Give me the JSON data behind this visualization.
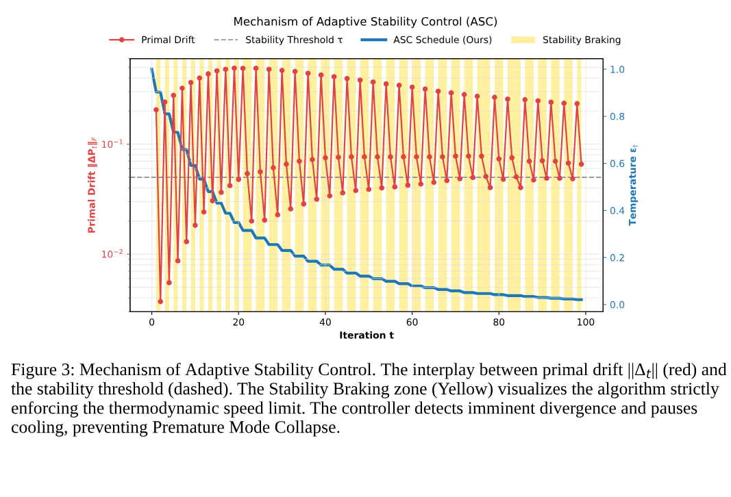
{
  "chart_data": {
    "type": "line",
    "title": "Mechanism of Adaptive Stability Control (ASC)",
    "xlabel": "Iteration t",
    "ylabel": "Primal Drift ‖ΔP$_{t}$‖$_{F}$",
    "y2label": "Temperature ε$_{t}$",
    "log": "y",
    "xlim": [
      -5,
      104
    ],
    "xticks": [
      0,
      20,
      40,
      60,
      80,
      100
    ],
    "ylim": [
      0.003,
      0.6
    ],
    "yticks": [
      {
        "value": 0.01,
        "label": "10$^{−2}$"
      },
      {
        "value": 0.1,
        "label": "10$^{−1}$"
      }
    ],
    "y2lim": [
      -0.03,
      1.045
    ],
    "y2ticks": [
      {
        "value": 0,
        "label": "0.0"
      },
      {
        "value": 0.2,
        "label": "0.2"
      },
      {
        "value": 0.4,
        "label": "0.4"
      },
      {
        "value": 0.6,
        "label": "0.6"
      },
      {
        "value": 0.8,
        "label": "0.8"
      },
      {
        "value": 1,
        "label": "1.0"
      }
    ],
    "grid": true,
    "legend": "top",
    "series": [
      {
        "name": "Primal Drift",
        "color": "#e04343",
        "marker": "circle",
        "line_style": "solid",
        "x": [
          1,
          2,
          3,
          4,
          5,
          6,
          7,
          8,
          9,
          10,
          11,
          12,
          13,
          14,
          15,
          16,
          17,
          18,
          19,
          20,
          21,
          22,
          23,
          24,
          25,
          26,
          27,
          28,
          29,
          30,
          31,
          32,
          33,
          34,
          35,
          36,
          37,
          38,
          39,
          40,
          41,
          42,
          43,
          44,
          45,
          46,
          47,
          48,
          49,
          50,
          51,
          52,
          53,
          54,
          55,
          56,
          57,
          58,
          59,
          60,
          61,
          62,
          63,
          64,
          65,
          66,
          67,
          68,
          69,
          70,
          71,
          72,
          73,
          74,
          75,
          76,
          77,
          78,
          79,
          80,
          81,
          82,
          83,
          84,
          85,
          86,
          87,
          88,
          89,
          90,
          91,
          92,
          93,
          94,
          95,
          96,
          97,
          98,
          99
        ],
        "values": [
          0.206,
          0.0037,
          0.242,
          0.0055,
          0.278,
          0.0087,
          0.323,
          0.013,
          0.364,
          0.0183,
          0.4,
          0.0242,
          0.436,
          0.0306,
          0.465,
          0.0365,
          0.48,
          0.042,
          0.492,
          0.0478,
          0.49,
          0.054,
          0.02,
          0.49,
          0.056,
          0.0204,
          0.48,
          0.061,
          0.0228,
          0.469,
          0.0658,
          0.0258,
          0.459,
          0.07,
          0.0286,
          0.442,
          0.0724,
          0.0316,
          0.426,
          0.0752,
          0.0339,
          0.411,
          0.076,
          0.0361,
          0.395,
          0.0767,
          0.0379,
          0.383,
          0.0767,
          0.0388,
          0.368,
          0.0767,
          0.04,
          0.354,
          0.0767,
          0.0409,
          0.343,
          0.0767,
          0.0424,
          0.33,
          0.0767,
          0.0434,
          0.318,
          0.0767,
          0.045,
          0.303,
          0.0767,
          0.0467,
          0.293,
          0.0778,
          0.0485,
          0.283,
          0.0778,
          0.0497,
          0.273,
          0.0778,
          0.0508,
          0.0403,
          0.267,
          0.0735,
          0.048,
          0.257,
          0.0752,
          0.0504,
          0.0403,
          0.254,
          0.07,
          0.0473,
          0.248,
          0.0707,
          0.049,
          0.241,
          0.07,
          0.049,
          0.236,
          0.0673,
          0.0485,
          0.234,
          0.0658
        ]
      },
      {
        "name": "ASC Schedule (Ours)",
        "color": "#1f77b4",
        "axis": "y2",
        "marker": "none",
        "line_style": "solid",
        "x": [
          0,
          1,
          2,
          3,
          4,
          5,
          6,
          7,
          8,
          9,
          10,
          11,
          12,
          13,
          14,
          15,
          16,
          17,
          18,
          19,
          20,
          21,
          22,
          23,
          24,
          25,
          26,
          27,
          28,
          29,
          30,
          31,
          32,
          33,
          34,
          35,
          36,
          37,
          38,
          39,
          40,
          41,
          42,
          43,
          44,
          45,
          46,
          47,
          48,
          49,
          50,
          51,
          52,
          53,
          54,
          55,
          56,
          57,
          58,
          59,
          60,
          61,
          62,
          63,
          64,
          65,
          66,
          67,
          68,
          69,
          70,
          71,
          72,
          73,
          74,
          75,
          76,
          77,
          78,
          79,
          80,
          81,
          82,
          83,
          84,
          85,
          86,
          87,
          88,
          89,
          90,
          91,
          92,
          93,
          94,
          95,
          96,
          97,
          98,
          99
        ],
        "values": [
          1.0,
          0.903,
          0.903,
          0.81,
          0.81,
          0.732,
          0.732,
          0.659,
          0.659,
          0.591,
          0.591,
          0.533,
          0.533,
          0.48,
          0.48,
          0.431,
          0.431,
          0.388,
          0.388,
          0.349,
          0.349,
          0.315,
          0.315,
          0.315,
          0.283,
          0.283,
          0.283,
          0.255,
          0.255,
          0.255,
          0.23,
          0.23,
          0.23,
          0.206,
          0.206,
          0.206,
          0.184,
          0.184,
          0.184,
          0.168,
          0.168,
          0.168,
          0.15,
          0.15,
          0.15,
          0.134,
          0.134,
          0.134,
          0.121,
          0.121,
          0.121,
          0.11,
          0.11,
          0.11,
          0.099,
          0.099,
          0.099,
          0.089,
          0.089,
          0.089,
          0.079,
          0.079,
          0.079,
          0.072,
          0.072,
          0.072,
          0.064,
          0.064,
          0.064,
          0.058,
          0.058,
          0.058,
          0.051,
          0.051,
          0.051,
          0.047,
          0.047,
          0.047,
          0.047,
          0.042,
          0.042,
          0.042,
          0.038,
          0.038,
          0.038,
          0.038,
          0.034,
          0.034,
          0.034,
          0.03,
          0.03,
          0.03,
          0.027,
          0.027,
          0.027,
          0.024,
          0.024,
          0.024,
          0.021,
          0.021
        ]
      }
    ],
    "ref_lines": [
      {
        "axis": "y",
        "value": 0.05,
        "label": "Stability Threshold τ",
        "color": "#999999",
        "line_style": "dashed"
      }
    ],
    "bands": [
      {
        "axis": "x",
        "from": 1,
        "to": 2,
        "label": "Stability Braking",
        "color": "#fff0a0"
      },
      {
        "axis": "x",
        "from": 3,
        "to": 4,
        "color": "#fff0a0"
      },
      {
        "axis": "x",
        "from": 5,
        "to": 6,
        "color": "#fff0a0"
      },
      {
        "axis": "x",
        "from": 7,
        "to": 8,
        "color": "#fff0a0"
      },
      {
        "axis": "x",
        "from": 9,
        "to": 10,
        "color": "#fff0a0"
      },
      {
        "axis": "x",
        "from": 11,
        "to": 12,
        "color": "#fff0a0"
      },
      {
        "axis": "x",
        "from": 13,
        "to": 14,
        "color": "#fff0a0"
      },
      {
        "axis": "x",
        "from": 15,
        "to": 16,
        "color": "#fff0a0"
      },
      {
        "axis": "x",
        "from": 17,
        "to": 18,
        "color": "#fff0a0"
      },
      {
        "axis": "x",
        "from": 19,
        "to": 20,
        "color": "#fff0a0"
      },
      {
        "axis": "x",
        "from": 21,
        "to": 23,
        "color": "#fff0a0"
      },
      {
        "axis": "x",
        "from": 24,
        "to": 26,
        "color": "#fff0a0"
      },
      {
        "axis": "x",
        "from": 27,
        "to": 29,
        "color": "#fff0a0"
      },
      {
        "axis": "x",
        "from": 30,
        "to": 32,
        "color": "#fff0a0"
      },
      {
        "axis": "x",
        "from": 33,
        "to": 35,
        "color": "#fff0a0"
      },
      {
        "axis": "x",
        "from": 36,
        "to": 38,
        "color": "#fff0a0"
      },
      {
        "axis": "x",
        "from": 39,
        "to": 41,
        "color": "#fff0a0"
      },
      {
        "axis": "x",
        "from": 42,
        "to": 44,
        "color": "#fff0a0"
      },
      {
        "axis": "x",
        "from": 45,
        "to": 47,
        "color": "#fff0a0"
      },
      {
        "axis": "x",
        "from": 48,
        "to": 50,
        "color": "#fff0a0"
      },
      {
        "axis": "x",
        "from": 51,
        "to": 53,
        "color": "#fff0a0"
      },
      {
        "axis": "x",
        "from": 54,
        "to": 56,
        "color": "#fff0a0"
      },
      {
        "axis": "x",
        "from": 57,
        "to": 59,
        "color": "#fff0a0"
      },
      {
        "axis": "x",
        "from": 60,
        "to": 62,
        "color": "#fff0a0"
      },
      {
        "axis": "x",
        "from": 63,
        "to": 65,
        "color": "#fff0a0"
      },
      {
        "axis": "x",
        "from": 66,
        "to": 68,
        "color": "#fff0a0"
      },
      {
        "axis": "x",
        "from": 69,
        "to": 71,
        "color": "#fff0a0"
      },
      {
        "axis": "x",
        "from": 72,
        "to": 74,
        "color": "#fff0a0"
      },
      {
        "axis": "x",
        "from": 75,
        "to": 78,
        "color": "#fff0a0"
      },
      {
        "axis": "x",
        "from": 79,
        "to": 81,
        "color": "#fff0a0"
      },
      {
        "axis": "x",
        "from": 82,
        "to": 85,
        "color": "#fff0a0"
      },
      {
        "axis": "x",
        "from": 86,
        "to": 88,
        "color": "#fff0a0"
      },
      {
        "axis": "x",
        "from": 89,
        "to": 91,
        "color": "#fff0a0"
      },
      {
        "axis": "x",
        "from": 92,
        "to": 94,
        "color": "#fff0a0"
      },
      {
        "axis": "x",
        "from": 95,
        "to": 97,
        "color": "#fff0a0"
      },
      {
        "axis": "x",
        "from": 98,
        "to": 99,
        "color": "#fff0a0"
      }
    ],
    "annotations": [
      "Figure 3: Mechanism of Adaptive Stability Control. The interplay between primal drift ||Δ$_{t}$|| (red) and the stability threshold (dashed). The Stability Braking zone (Yellow) visualizes the algorithm strictly enforcing the thermodynamic speed limit. The controller detects imminent divergence and pauses cooling, preventing Premature Mode Collapse."
    ]
  }
}
